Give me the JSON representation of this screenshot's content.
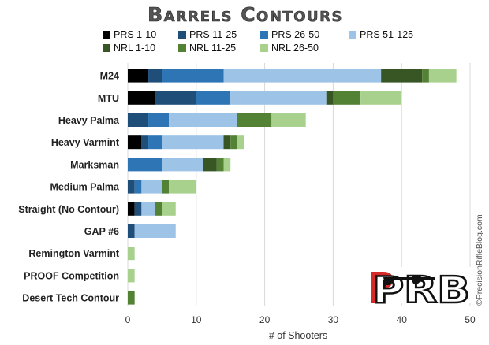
{
  "chart_data": {
    "type": "bar",
    "orientation": "horizontal",
    "stacked": true,
    "title": "Barrels Contours",
    "xlabel": "# of Shooters",
    "ylabel": "",
    "xlim": [
      0,
      50
    ],
    "xticks": [
      0,
      10,
      20,
      30,
      40,
      50
    ],
    "grid": "vertical",
    "legend_position": "top",
    "categories": [
      "M24",
      "MTU",
      "Heavy Palma",
      "Heavy Varmint",
      "Marksman",
      "Medium Palma",
      "Straight (No Contour)",
      "GAP #6",
      "Remington Varmint",
      "PROOF Competition",
      "Desert Tech Contour"
    ],
    "series": [
      {
        "name": "PRS 1-10",
        "color": "#000000",
        "values": [
          3,
          4,
          0,
          2,
          0,
          0,
          1,
          0,
          0,
          0,
          0
        ]
      },
      {
        "name": "PRS 11-25",
        "color": "#1f4e79",
        "values": [
          2,
          6,
          3,
          1,
          0,
          1,
          1,
          1,
          0,
          0,
          0
        ]
      },
      {
        "name": "PRS 26-50",
        "color": "#2e75b6",
        "values": [
          9,
          5,
          3,
          2,
          5,
          1,
          0,
          0,
          0,
          0,
          0
        ]
      },
      {
        "name": "PRS 51-125",
        "color": "#9dc3e6",
        "values": [
          23,
          14,
          10,
          9,
          6,
          3,
          2,
          6,
          0,
          0,
          0
        ]
      },
      {
        "name": "NRL 1-10",
        "color": "#375623",
        "values": [
          6,
          1,
          0,
          1,
          2,
          0,
          0,
          0,
          0,
          0,
          0
        ]
      },
      {
        "name": "NRL 11-25",
        "color": "#548235",
        "values": [
          1,
          4,
          5,
          1,
          1,
          1,
          1,
          0,
          0,
          0,
          1
        ]
      },
      {
        "name": "NRL 26-50",
        "color": "#a9d18e",
        "values": [
          4,
          6,
          5,
          1,
          1,
          4,
          2,
          0,
          1,
          1,
          0
        ]
      }
    ]
  },
  "watermark": "©PrecisionRifleBlog.com",
  "logo": {
    "text": "PRB"
  }
}
